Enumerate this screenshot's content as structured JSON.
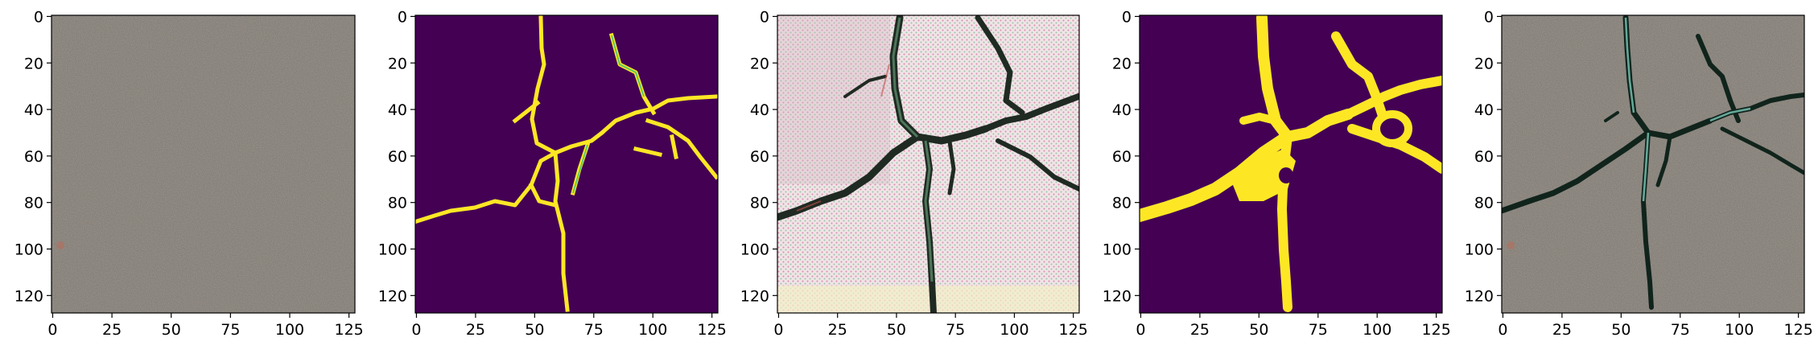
{
  "figure": {
    "panels": [
      {
        "id": "p1",
        "kind": "photo",
        "description_name": "pavement-photo"
      },
      {
        "id": "p2",
        "kind": "mask",
        "description_name": "crack-mask"
      },
      {
        "id": "p3",
        "kind": "generated",
        "description_name": "generated-texture"
      },
      {
        "id": "p4",
        "kind": "mask-smooth",
        "description_name": "smooth-crack-mask"
      },
      {
        "id": "p5",
        "kind": "overlay",
        "description_name": "pavement-with-cracks"
      }
    ],
    "x_ticks": [
      "0",
      "25",
      "50",
      "75",
      "100",
      "125"
    ],
    "y_ticks": [
      "0",
      "20",
      "40",
      "60",
      "80",
      "100",
      "120"
    ],
    "colors": {
      "mask_background": "#440154",
      "mask_crack": "#fde725",
      "mask_edge": "#21918c",
      "pavement": "#8d877f"
    }
  }
}
